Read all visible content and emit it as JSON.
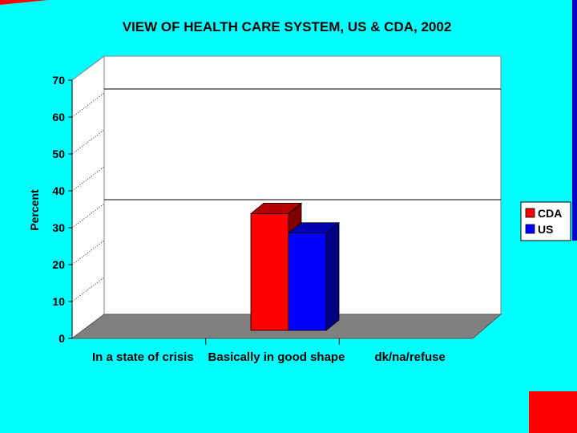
{
  "chart_data": {
    "type": "bar",
    "title": "VIEW OF HEALTH CARE SYSTEM, US & CDA, 2002",
    "ylabel": "Percent",
    "xlabel": "",
    "ylim": [
      0,
      70
    ],
    "yticks": [
      "0",
      "10",
      "20",
      "30",
      "40",
      "50",
      "60",
      "70"
    ],
    "categories": [
      "In a state of crisis",
      "Basically in good shape",
      "dk/na/refuse"
    ],
    "series": [
      {
        "name": "CDA",
        "color": "#ff0000",
        "values": [
          null,
          31,
          null
        ]
      },
      {
        "name": "US",
        "color": "#0000ff",
        "values": [
          null,
          27,
          null
        ]
      }
    ],
    "grid": true,
    "legend": "right",
    "colors": {
      "background": "#00ffff",
      "plot_wall": "#ffffff",
      "floor": "#808080"
    }
  }
}
